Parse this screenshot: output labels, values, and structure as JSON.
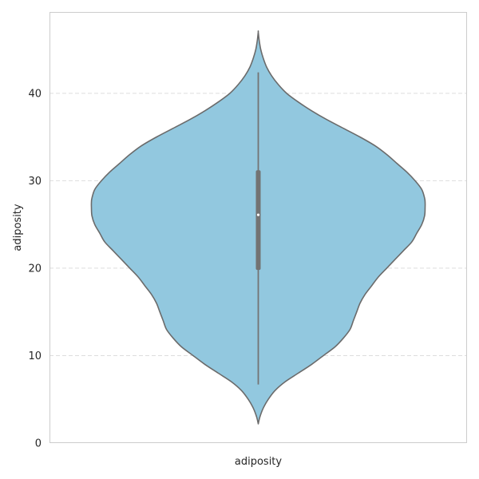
{
  "chart_data": {
    "type": "violin",
    "title": "",
    "xlabel": "adiposity",
    "ylabel": "adiposity",
    "categories": [
      "adiposity"
    ],
    "ylim": [
      0,
      49.3
    ],
    "yticks": [
      0,
      10,
      20,
      30,
      40
    ],
    "grid": {
      "y": true,
      "x": false,
      "style": "dashed"
    },
    "colors": {
      "violin_fill": "#92c8df",
      "violin_stroke": "#6b6b6b",
      "box": "#737373",
      "median": "#ffffff",
      "grid": "#dddddd",
      "spine": "#cccccc"
    },
    "summary": {
      "whisker_low": 6.7,
      "q1": 19.8,
      "median": 26.1,
      "q3": 31.2,
      "whisker_high": 42.4,
      "kde_min": 2.2,
      "kde_max": 47.0
    },
    "density_profile": [
      [
        2.2,
        0.0
      ],
      [
        3.0,
        0.01
      ],
      [
        4.0,
        0.03
      ],
      [
        5.0,
        0.06
      ],
      [
        6.0,
        0.1
      ],
      [
        7.0,
        0.16
      ],
      [
        8.0,
        0.24
      ],
      [
        9.0,
        0.32
      ],
      [
        10.0,
        0.39
      ],
      [
        11.0,
        0.46
      ],
      [
        12.0,
        0.51
      ],
      [
        13.0,
        0.55
      ],
      [
        14.0,
        0.57
      ],
      [
        15.0,
        0.59
      ],
      [
        16.0,
        0.61
      ],
      [
        17.0,
        0.64
      ],
      [
        18.0,
        0.68
      ],
      [
        19.0,
        0.72
      ],
      [
        20.0,
        0.77
      ],
      [
        21.0,
        0.82
      ],
      [
        22.0,
        0.87
      ],
      [
        23.0,
        0.92
      ],
      [
        24.0,
        0.95
      ],
      [
        25.0,
        0.98
      ],
      [
        26.0,
        0.997
      ],
      [
        27.0,
        1.0
      ],
      [
        27.5,
        1.0
      ],
      [
        28.0,
        0.997
      ],
      [
        29.0,
        0.98
      ],
      [
        30.0,
        0.94
      ],
      [
        31.0,
        0.89
      ],
      [
        32.0,
        0.83
      ],
      [
        33.0,
        0.77
      ],
      [
        34.0,
        0.7
      ],
      [
        35.0,
        0.61
      ],
      [
        36.0,
        0.51
      ],
      [
        37.0,
        0.41
      ],
      [
        38.0,
        0.32
      ],
      [
        39.0,
        0.24
      ],
      [
        40.0,
        0.17
      ],
      [
        41.0,
        0.12
      ],
      [
        42.0,
        0.08
      ],
      [
        43.0,
        0.05
      ],
      [
        44.0,
        0.03
      ],
      [
        45.0,
        0.015
      ],
      [
        46.0,
        0.006
      ],
      [
        47.0,
        0.0
      ]
    ]
  }
}
